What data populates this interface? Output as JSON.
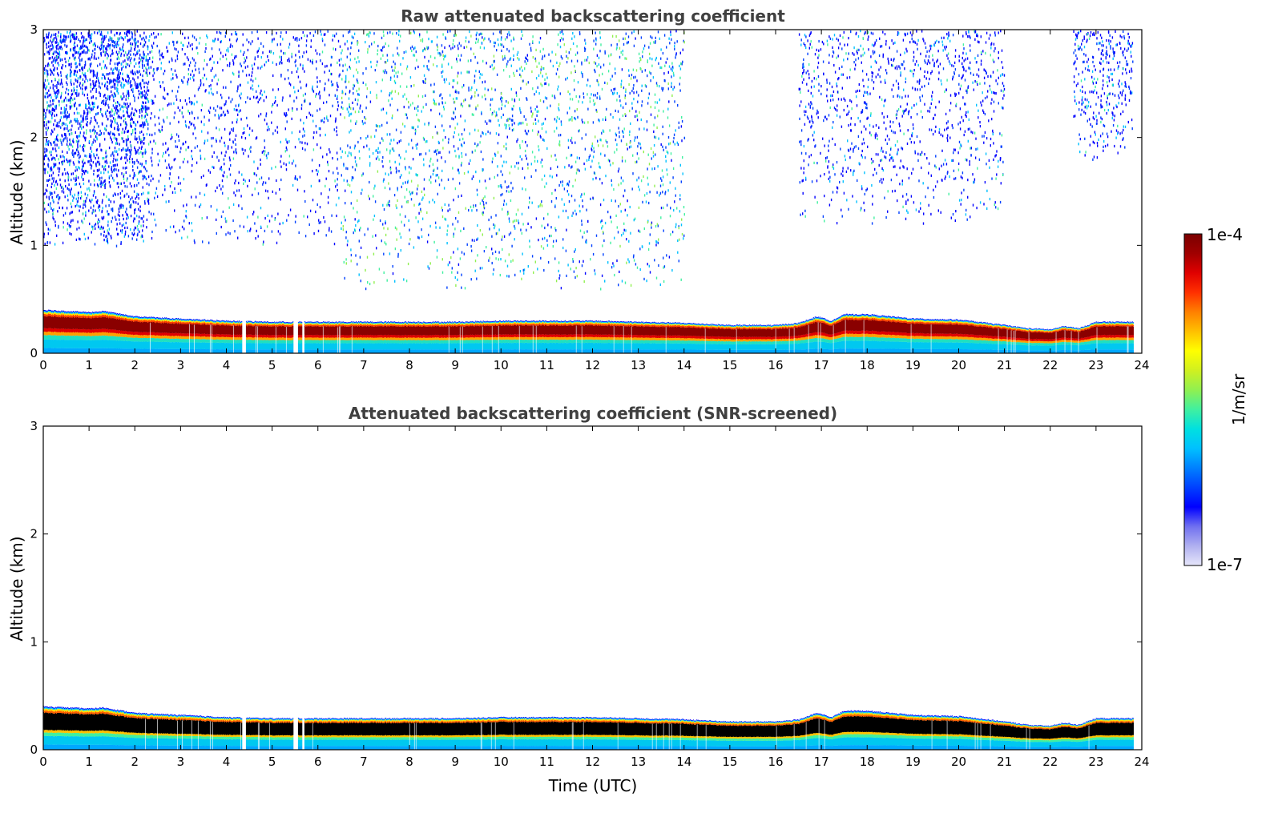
{
  "chart_data": [
    {
      "type": "heatmap",
      "title": "Raw attenuated backscattering coefficient",
      "xlabel": "",
      "ylabel": "Altitude (km)",
      "xlim": [
        0,
        24
      ],
      "ylim": [
        0,
        3
      ],
      "xticks": [
        "0",
        "1",
        "2",
        "3",
        "4",
        "5",
        "6",
        "7",
        "8",
        "9",
        "10",
        "11",
        "12",
        "13",
        "14",
        "15",
        "16",
        "17",
        "18",
        "19",
        "20",
        "21",
        "22",
        "23",
        "24"
      ],
      "yticks": [
        "0",
        "1",
        "2",
        "3"
      ],
      "layer_top_km": [
        [
          0,
          0.4
        ],
        [
          1,
          0.38
        ],
        [
          1.3,
          0.39
        ],
        [
          2,
          0.34
        ],
        [
          3,
          0.32
        ],
        [
          4,
          0.3
        ],
        [
          5,
          0.29
        ],
        [
          6,
          0.29
        ],
        [
          7,
          0.29
        ],
        [
          8,
          0.29
        ],
        [
          9,
          0.29
        ],
        [
          10,
          0.3
        ],
        [
          11,
          0.3
        ],
        [
          12,
          0.3
        ],
        [
          13,
          0.29
        ],
        [
          14,
          0.28
        ],
        [
          15,
          0.26
        ],
        [
          16,
          0.26
        ],
        [
          16.5,
          0.28
        ],
        [
          16.9,
          0.34
        ],
        [
          17.2,
          0.3
        ],
        [
          17.5,
          0.36
        ],
        [
          18,
          0.36
        ],
        [
          19,
          0.32
        ],
        [
          20,
          0.31
        ],
        [
          21,
          0.26
        ],
        [
          21.5,
          0.23
        ],
        [
          22,
          0.22
        ],
        [
          22.3,
          0.25
        ],
        [
          22.6,
          0.23
        ],
        [
          23,
          0.29
        ],
        [
          23.8,
          0.29
        ]
      ],
      "data_gaps_utc": [
        [
          4.33,
          4.42
        ],
        [
          5.45,
          5.55
        ],
        [
          5.65,
          5.7
        ]
      ],
      "noise_regions": [
        {
          "t0": 0,
          "t1": 2.3,
          "z0": 1.0,
          "z1": 3.0,
          "density": "high",
          "level": "low"
        },
        {
          "t0": 2.3,
          "t1": 6.5,
          "z0": 1.0,
          "z1": 3.0,
          "density": "medium",
          "level": "low"
        },
        {
          "t0": 6.5,
          "t1": 14.0,
          "z0": 0.6,
          "z1": 3.0,
          "density": "high",
          "level": "medium"
        },
        {
          "t0": 16.5,
          "t1": 21.0,
          "z0": 1.2,
          "z1": 3.0,
          "density": "medium",
          "level": "low"
        },
        {
          "t0": 22.5,
          "t1": 23.8,
          "z0": 1.8,
          "z1": 3.0,
          "density": "low",
          "level": "low"
        }
      ]
    },
    {
      "type": "heatmap",
      "title": "Attenuated backscattering coefficient (SNR-screened)",
      "xlabel": "Time (UTC)",
      "ylabel": "Altitude (km)",
      "xlim": [
        0,
        24
      ],
      "ylim": [
        0,
        3
      ],
      "xticks": [
        "0",
        "1",
        "2",
        "3",
        "4",
        "5",
        "6",
        "7",
        "8",
        "9",
        "10",
        "11",
        "12",
        "13",
        "14",
        "15",
        "16",
        "17",
        "18",
        "19",
        "20",
        "21",
        "22",
        "23",
        "24"
      ],
      "yticks": [
        "0",
        "1",
        "2",
        "3"
      ],
      "layer_top_km": [
        [
          0,
          0.4
        ],
        [
          1,
          0.38
        ],
        [
          1.3,
          0.39
        ],
        [
          2,
          0.34
        ],
        [
          3,
          0.32
        ],
        [
          4,
          0.3
        ],
        [
          5,
          0.29
        ],
        [
          6,
          0.29
        ],
        [
          7,
          0.29
        ],
        [
          8,
          0.29
        ],
        [
          9,
          0.29
        ],
        [
          10,
          0.3
        ],
        [
          11,
          0.3
        ],
        [
          12,
          0.3
        ],
        [
          13,
          0.29
        ],
        [
          14,
          0.28
        ],
        [
          15,
          0.26
        ],
        [
          16,
          0.26
        ],
        [
          16.5,
          0.28
        ],
        [
          16.9,
          0.34
        ],
        [
          17.2,
          0.3
        ],
        [
          17.5,
          0.36
        ],
        [
          18,
          0.36
        ],
        [
          19,
          0.32
        ],
        [
          20,
          0.31
        ],
        [
          21,
          0.26
        ],
        [
          21.5,
          0.23
        ],
        [
          22,
          0.22
        ],
        [
          22.3,
          0.25
        ],
        [
          22.6,
          0.23
        ],
        [
          23,
          0.29
        ],
        [
          23.8,
          0.29
        ]
      ],
      "data_gaps_utc": [
        [
          4.33,
          4.42
        ],
        [
          5.45,
          5.55
        ],
        [
          5.65,
          5.7
        ]
      ]
    }
  ],
  "colorbar": {
    "label": "1/m/sr",
    "max_label": "1e-4",
    "min_label": "1e-7",
    "colors": [
      "#e6e6fa",
      "#b0b0f0",
      "#7070f0",
      "#0000ff",
      "#0040ff",
      "#0080ff",
      "#00c0ff",
      "#00e0e0",
      "#40f0a0",
      "#90f050",
      "#d0f020",
      "#ffff00",
      "#ffc000",
      "#ff8000",
      "#ff3000",
      "#e00000",
      "#a00000",
      "#7a0000"
    ]
  },
  "colors": {
    "title_text": "#404040",
    "saturated_core_raw": "#7a0000",
    "saturated_core_screened": "#000000"
  }
}
